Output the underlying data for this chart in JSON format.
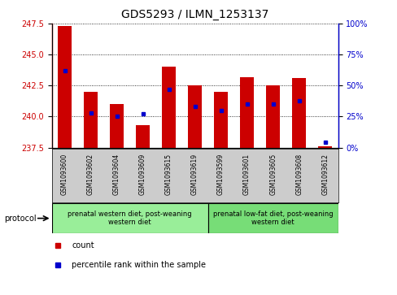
{
  "title": "GDS5293 / ILMN_1253137",
  "samples": [
    "GSM1093600",
    "GSM1093602",
    "GSM1093604",
    "GSM1093609",
    "GSM1093615",
    "GSM1093619",
    "GSM1093599",
    "GSM1093601",
    "GSM1093605",
    "GSM1093608",
    "GSM1093612"
  ],
  "count_values": [
    247.3,
    242.0,
    241.0,
    239.3,
    244.0,
    242.5,
    242.0,
    243.2,
    242.5,
    243.1,
    237.6
  ],
  "percentile_values": [
    62,
    28,
    25,
    27,
    47,
    33,
    30,
    35,
    35,
    38,
    4
  ],
  "baseline": 237.5,
  "ylim_left": [
    237.5,
    247.5
  ],
  "ylim_right": [
    0,
    100
  ],
  "yticks_left": [
    237.5,
    240.0,
    242.5,
    245.0,
    247.5
  ],
  "yticks_right": [
    0,
    25,
    50,
    75,
    100
  ],
  "bar_color": "#cc0000",
  "percentile_color": "#0000cc",
  "grid_color": "#000000",
  "bg_plot": "#ffffff",
  "bg_xlabels": "#cccccc",
  "group1_color": "#99ee99",
  "group2_color": "#77dd77",
  "group1_label": "prenatal western diet, post-weaning\nwestern diet",
  "group2_label": "prenatal low-fat diet, post-weaning\nwestern diet",
  "protocol_label": "protocol",
  "legend_count": "count",
  "legend_percentile": "percentile rank within the sample",
  "group1_indices": [
    0,
    1,
    2,
    3,
    4,
    5
  ],
  "group2_indices": [
    6,
    7,
    8,
    9,
    10
  ],
  "title_fontsize": 10,
  "tick_fontsize": 7,
  "label_fontsize": 7
}
